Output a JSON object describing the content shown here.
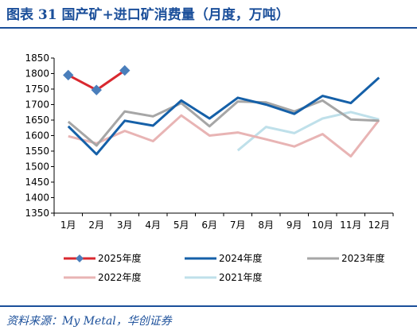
{
  "header": {
    "title": "图表 31    国产矿+进口矿消费量（月度，万吨）"
  },
  "footer": {
    "source": "资料来源：My Metal，华创证券"
  },
  "chart_data": {
    "type": "line",
    "categories": [
      "1月",
      "2月",
      "3月",
      "4月",
      "5月",
      "6月",
      "7月",
      "8月",
      "9月",
      "10月",
      "11月",
      "12月"
    ],
    "ylim": [
      1350,
      1850
    ],
    "yticks": [
      1350,
      1400,
      1450,
      1500,
      1550,
      1600,
      1650,
      1700,
      1750,
      1800,
      1850
    ],
    "grid": false,
    "legend_position": "bottom",
    "series": [
      {
        "name": "2025年度",
        "color": "#d9282f",
        "marker": "diamond",
        "markerColor": "#4a7ebb",
        "width": 3,
        "values": [
          1795,
          1747,
          1810,
          null,
          null,
          null,
          null,
          null,
          null,
          null,
          null,
          null
        ]
      },
      {
        "name": "2024年度",
        "color": "#1560a8",
        "marker": "none",
        "width": 3,
        "values": [
          1630,
          1540,
          1648,
          1632,
          1713,
          1655,
          1722,
          1700,
          1670,
          1728,
          1705,
          1787
        ]
      },
      {
        "name": "2023年度",
        "color": "#a6a6a6",
        "marker": "none",
        "width": 3,
        "values": [
          1645,
          1568,
          1678,
          1662,
          1705,
          1630,
          1710,
          1707,
          1678,
          1713,
          1652,
          1648
        ]
      },
      {
        "name": "2022年度",
        "color": "#e8b4b4",
        "marker": "none",
        "width": 3,
        "values": [
          1598,
          1575,
          1615,
          1582,
          1665,
          1600,
          1610,
          1588,
          1565,
          1605,
          1533,
          1650
        ]
      },
      {
        "name": "2021年度",
        "color": "#bfe0ea",
        "marker": "none",
        "width": 3,
        "values": [
          null,
          null,
          null,
          null,
          null,
          null,
          1552,
          1628,
          1608,
          1655,
          1676,
          1652
        ]
      }
    ]
  }
}
